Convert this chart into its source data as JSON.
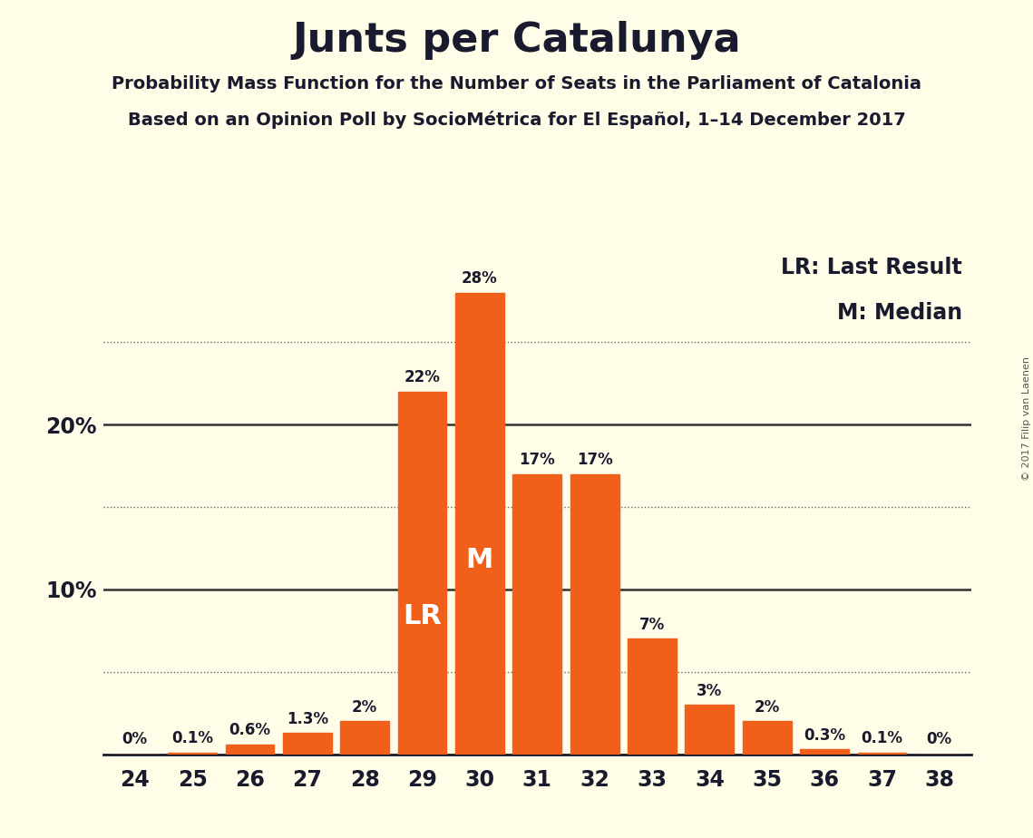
{
  "title": "Junts per Catalunya",
  "subtitle1": "Probability Mass Function for the Number of Seats in the Parliament of Catalonia",
  "subtitle2": "Based on an Opinion Poll by SocioMétrica for El Español, 1–14 December 2017",
  "copyright": "© 2017 Filip van Laenen",
  "categories": [
    24,
    25,
    26,
    27,
    28,
    29,
    30,
    31,
    32,
    33,
    34,
    35,
    36,
    37,
    38
  ],
  "values": [
    0.0,
    0.1,
    0.6,
    1.3,
    2.0,
    22.0,
    28.0,
    17.0,
    17.0,
    7.0,
    3.0,
    2.0,
    0.3,
    0.1,
    0.0
  ],
  "labels": [
    "0%",
    "0.1%",
    "0.6%",
    "1.3%",
    "2%",
    "22%",
    "28%",
    "17%",
    "17%",
    "7%",
    "3%",
    "2%",
    "0.3%",
    "0.1%",
    "0%"
  ],
  "bar_color": "#F0601A",
  "background_color": "#FFFDE7",
  "lr_seat": 29,
  "median_seat": 30,
  "lr_label": "LR",
  "median_label": "M",
  "legend_lr": "LR: Last Result",
  "legend_m": "M: Median",
  "solid_lines": [
    10,
    20
  ],
  "dotted_lines": [
    5,
    15,
    25
  ],
  "ylim": [
    0,
    30.5
  ],
  "ytick_positions": [
    10,
    20
  ],
  "ytick_labels": [
    "10%",
    "20%"
  ]
}
